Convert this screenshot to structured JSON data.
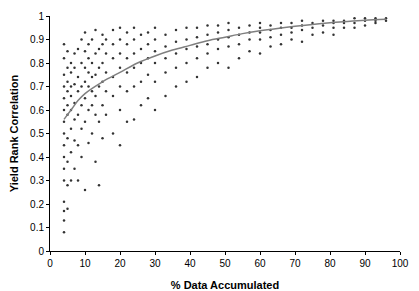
{
  "chart_data": {
    "type": "scatter",
    "x_label": "% Data Accumulated",
    "y_label": "Yield Rank Correlation",
    "xlim": [
      0,
      100
    ],
    "xticks": [
      0,
      10,
      20,
      30,
      40,
      50,
      60,
      70,
      80,
      90,
      100
    ],
    "ylim": [
      0,
      1
    ],
    "yticks": [
      0,
      0.1,
      0.2,
      0.3,
      0.4,
      0.5,
      0.6,
      0.7,
      0.8,
      0.9,
      1
    ],
    "grid": false,
    "series": [
      {
        "type": "scatter",
        "marker": "circle",
        "color": "#333333",
        "x": [
          4,
          4,
          4,
          4,
          4,
          4,
          4,
          4,
          4,
          4,
          4,
          4,
          4,
          4,
          4,
          4,
          5,
          5,
          5,
          5,
          5,
          5,
          5,
          5,
          5,
          5,
          6,
          6,
          6,
          6,
          6,
          6,
          6,
          6,
          7,
          7,
          7,
          7,
          7,
          7,
          7,
          8,
          8,
          8,
          8,
          8,
          8,
          9,
          9,
          9,
          9,
          9,
          9,
          10,
          10,
          10,
          10,
          10,
          10,
          10,
          11,
          11,
          11,
          11,
          11,
          11,
          12,
          12,
          12,
          12,
          12,
          12,
          13,
          13,
          13,
          13,
          13,
          13,
          14,
          14,
          14,
          14,
          14,
          15,
          15,
          15,
          15,
          15,
          15,
          16,
          16,
          16,
          16,
          16,
          18,
          18,
          18,
          18,
          18,
          18,
          20,
          20,
          20,
          20,
          20,
          20,
          20,
          22,
          22,
          22,
          22,
          22,
          22,
          24,
          24,
          24,
          24,
          24,
          24,
          26,
          26,
          26,
          26,
          26,
          28,
          28,
          28,
          28,
          28,
          30,
          30,
          30,
          30,
          30,
          30,
          33,
          33,
          33,
          33,
          33,
          36,
          36,
          36,
          36,
          36,
          39,
          39,
          39,
          39,
          39,
          42,
          42,
          42,
          42,
          42,
          45,
          45,
          45,
          45,
          45,
          48,
          48,
          48,
          48,
          48,
          51,
          51,
          51,
          51,
          51,
          54,
          54,
          54,
          54,
          57,
          57,
          57,
          57,
          60,
          60,
          60,
          60,
          60,
          63,
          63,
          63,
          63,
          66,
          66,
          66,
          66,
          69,
          69,
          69,
          69,
          72,
          72,
          72,
          72,
          75,
          75,
          75,
          78,
          78,
          78,
          81,
          81,
          81,
          81,
          84,
          84,
          84,
          87,
          87,
          87,
          90,
          90,
          90,
          93,
          93,
          93,
          96,
          96
        ],
        "values": [
          0.08,
          0.13,
          0.17,
          0.21,
          0.3,
          0.35,
          0.4,
          0.45,
          0.5,
          0.55,
          0.6,
          0.65,
          0.7,
          0.75,
          0.82,
          0.88,
          0.18,
          0.28,
          0.38,
          0.48,
          0.58,
          0.62,
          0.68,
          0.72,
          0.78,
          0.85,
          0.3,
          0.42,
          0.52,
          0.6,
          0.66,
          0.7,
          0.76,
          0.8,
          0.35,
          0.47,
          0.56,
          0.63,
          0.71,
          0.78,
          0.84,
          0.3,
          0.45,
          0.58,
          0.68,
          0.74,
          0.86,
          0.4,
          0.52,
          0.62,
          0.7,
          0.8,
          0.9,
          0.26,
          0.55,
          0.65,
          0.72,
          0.78,
          0.85,
          0.93,
          0.46,
          0.6,
          0.7,
          0.76,
          0.82,
          0.88,
          0.5,
          0.62,
          0.68,
          0.74,
          0.8,
          0.9,
          0.38,
          0.58,
          0.66,
          0.75,
          0.84,
          0.94,
          0.28,
          0.55,
          0.7,
          0.78,
          0.86,
          0.48,
          0.62,
          0.72,
          0.8,
          0.88,
          0.92,
          0.58,
          0.68,
          0.76,
          0.84,
          0.9,
          0.5,
          0.66,
          0.74,
          0.82,
          0.88,
          0.94,
          0.45,
          0.6,
          0.7,
          0.78,
          0.84,
          0.9,
          0.95,
          0.55,
          0.68,
          0.76,
          0.82,
          0.88,
          0.93,
          0.56,
          0.7,
          0.78,
          0.84,
          0.9,
          0.95,
          0.62,
          0.72,
          0.8,
          0.86,
          0.92,
          0.65,
          0.75,
          0.82,
          0.88,
          0.93,
          0.6,
          0.72,
          0.8,
          0.85,
          0.9,
          0.95,
          0.66,
          0.76,
          0.82,
          0.87,
          0.92,
          0.7,
          0.78,
          0.84,
          0.89,
          0.94,
          0.72,
          0.8,
          0.86,
          0.9,
          0.95,
          0.74,
          0.82,
          0.87,
          0.91,
          0.95,
          0.78,
          0.84,
          0.88,
          0.92,
          0.96,
          0.8,
          0.86,
          0.9,
          0.93,
          0.96,
          0.78,
          0.87,
          0.91,
          0.94,
          0.97,
          0.82,
          0.88,
          0.92,
          0.95,
          0.85,
          0.9,
          0.93,
          0.96,
          0.84,
          0.9,
          0.93,
          0.95,
          0.97,
          0.87,
          0.91,
          0.94,
          0.96,
          0.88,
          0.92,
          0.95,
          0.97,
          0.9,
          0.93,
          0.95,
          0.97,
          0.89,
          0.94,
          0.96,
          0.98,
          0.92,
          0.95,
          0.97,
          0.93,
          0.96,
          0.98,
          0.92,
          0.95,
          0.97,
          0.98,
          0.95,
          0.97,
          0.98,
          0.95,
          0.97,
          0.99,
          0.96,
          0.98,
          0.99,
          0.97,
          0.98,
          0.99,
          0.98,
          0.99
        ]
      },
      {
        "type": "line",
        "line_style": "solid",
        "color": "#7f7f7f",
        "x": [
          4,
          6,
          8,
          10,
          15,
          20,
          25,
          30,
          35,
          40,
          45,
          50,
          55,
          60,
          65,
          70,
          75,
          80,
          85,
          90,
          96
        ],
        "values": [
          0.56,
          0.6,
          0.64,
          0.67,
          0.72,
          0.76,
          0.8,
          0.83,
          0.855,
          0.875,
          0.895,
          0.91,
          0.925,
          0.937,
          0.947,
          0.956,
          0.964,
          0.971,
          0.977,
          0.982,
          0.986
        ]
      }
    ]
  }
}
